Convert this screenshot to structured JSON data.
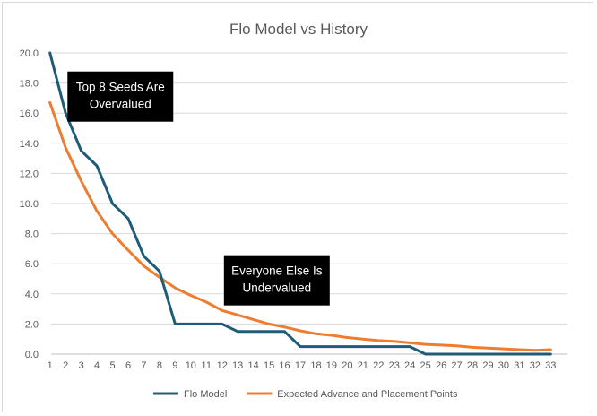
{
  "chart_data": {
    "type": "line",
    "title": "Flo Model vs History",
    "xlabel": "",
    "ylabel": "",
    "x": [
      1,
      2,
      3,
      4,
      5,
      6,
      7,
      8,
      9,
      10,
      11,
      12,
      13,
      14,
      15,
      16,
      17,
      18,
      19,
      20,
      21,
      22,
      23,
      24,
      25,
      26,
      27,
      28,
      29,
      30,
      31,
      32,
      33
    ],
    "ylim": [
      0,
      20
    ],
    "yticks": [
      "0.0",
      "2.0",
      "4.0",
      "6.0",
      "8.0",
      "10.0",
      "12.0",
      "14.0",
      "16.0",
      "18.0",
      "20.0"
    ],
    "grid": true,
    "legend_position": "bottom",
    "series": [
      {
        "name": "Flo Model",
        "color": "#1f5c78",
        "values": [
          20,
          16,
          13.5,
          12.5,
          10,
          9,
          6.5,
          5.5,
          2,
          2,
          2,
          2,
          1.5,
          1.5,
          1.5,
          1.5,
          0.5,
          0.5,
          0.5,
          0.5,
          0.5,
          0.5,
          0.5,
          0.5,
          0,
          0,
          0,
          0,
          0,
          0,
          0,
          0,
          0
        ]
      },
      {
        "name": "Expected Advance and Placement Points",
        "color": "#ed7d31",
        "values": [
          16.7,
          13.7,
          11.5,
          9.5,
          8.0,
          6.9,
          5.85,
          5.1,
          4.4,
          3.9,
          3.45,
          2.9,
          2.6,
          2.3,
          2.0,
          1.8,
          1.55,
          1.35,
          1.25,
          1.1,
          1.0,
          0.9,
          0.85,
          0.75,
          0.65,
          0.6,
          0.55,
          0.45,
          0.4,
          0.35,
          0.3,
          0.25,
          0.3
        ]
      }
    ],
    "annotations": [
      {
        "text_lines": [
          "Top 8 Seeds Are",
          "Overvalued"
        ],
        "background": "#000000",
        "anchor_x": 5.5,
        "anchor_y": 17.1
      },
      {
        "text_lines": [
          "Everyone Else Is",
          "Undervalued"
        ],
        "background": "#000000",
        "anchor_x": 15.5,
        "anchor_y": 4.9
      }
    ]
  }
}
